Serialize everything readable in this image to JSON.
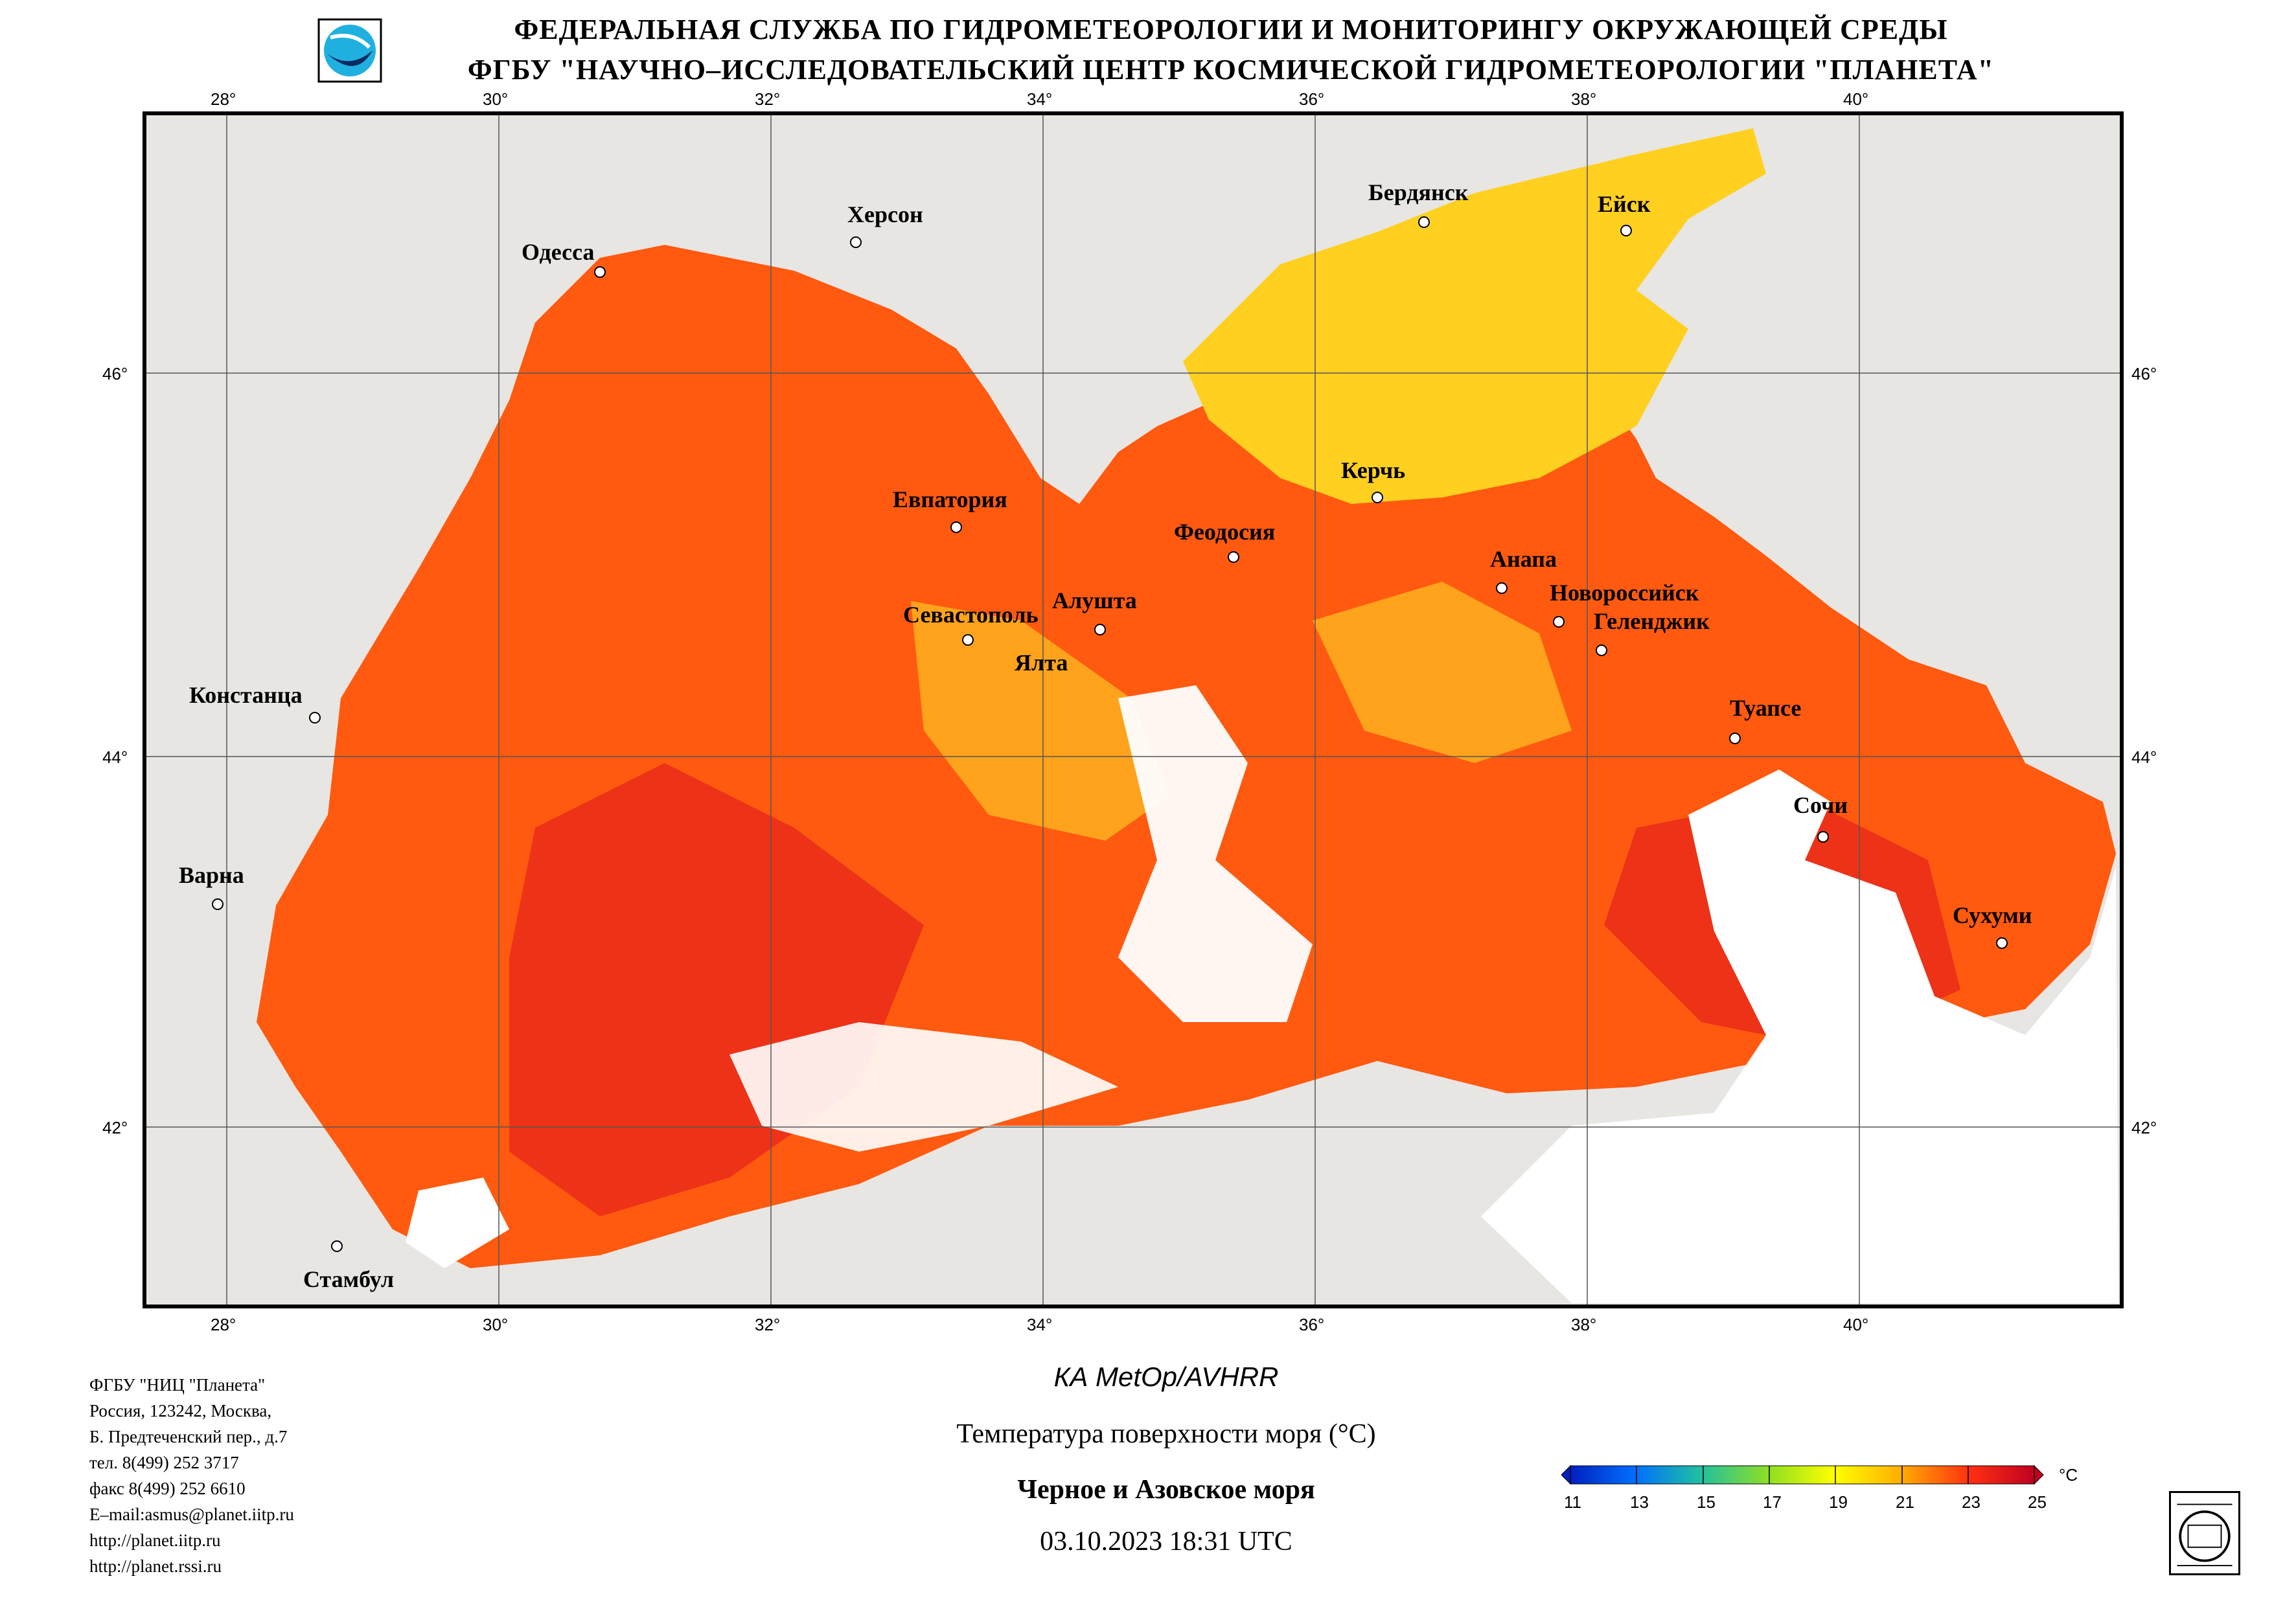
{
  "header": {
    "line1": "ФЕДЕРАЛЬНАЯ СЛУЖБА ПО ГИДРОМЕТЕОРОЛОГИИ И МОНИТОРИНГУ ОКРУЖАЮЩЕЙ СРЕДЫ",
    "line2": "ФГБУ \"НАУЧНО–ИССЛЕДОВАТЕЛЬСКИЙ ЦЕНТР КОСМИЧЕСКОЙ ГИДРОМЕТЕОРОЛОГИИ \"ПЛАНЕТА\""
  },
  "map": {
    "lon_ticks": [
      "28°",
      "30°",
      "32°",
      "34°",
      "36°",
      "38°",
      "40°"
    ],
    "lat_ticks": [
      "46°",
      "44°",
      "42°"
    ],
    "cities": [
      "Одесса",
      "Херсон",
      "Бердянск",
      "Ейск",
      "Евпатория",
      "Керчь",
      "Феодосия",
      "Анапа",
      "Новороссийск",
      "Геленджик",
      "Севастополь",
      "Алушта",
      "Ялта",
      "Констанца",
      "Туапсе",
      "Сочи",
      "Варна",
      "Сухуми",
      "Стамбул"
    ],
    "colors": {
      "land": "#e8e6e3",
      "sea_warm": "#ff5a10",
      "sea_hot": "#e8281a",
      "sea_mild": "#ffb020",
      "azov": "#ffd020",
      "cloud": "#ffffff"
    }
  },
  "footer": {
    "address": [
      "ФГБУ \"НИЦ \"Планета\"",
      "Россия, 123242, Москва,",
      "Б. Предтеченский пер., д.7",
      "тел. 8(499) 252 3717",
      "факс 8(499) 252 6610",
      "E–mail:asmus@planet.iitp.ru",
      "http://planet.iitp.ru",
      "http://planet.rssi.ru"
    ],
    "satellite": "КА MetOp/AVHRR",
    "parameter": "Температура поверхности моря (°C)",
    "region": "Черное и Азовское моря",
    "datetime": "03.10.2023 18:31 UTC"
  },
  "scale": {
    "labels": [
      "11",
      "13",
      "15",
      "17",
      "19",
      "21",
      "23",
      "25"
    ],
    "unit": "°C",
    "min": 11,
    "max": 25
  }
}
